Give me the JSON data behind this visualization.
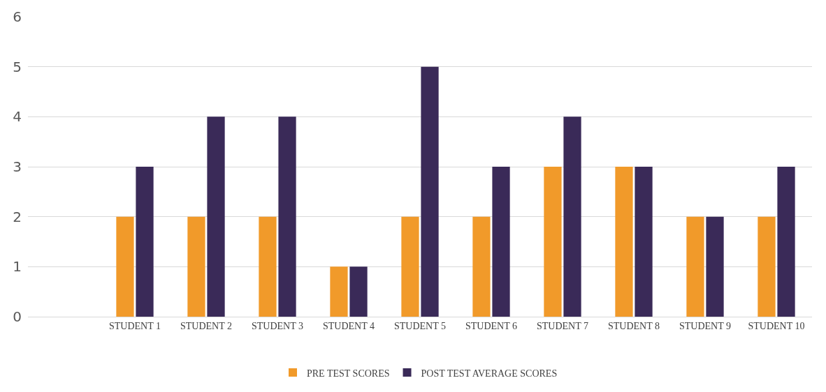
{
  "chart_data": {
    "type": "bar",
    "categories": [
      null,
      "STUDENT 1",
      "STUDENT 2",
      "STUDENT 3",
      "STUDENT 4",
      "STUDENT 5",
      "STUDENT 6",
      "STUDENT 7",
      "STUDENT 8",
      "STUDENT 9",
      "STUDENT 10"
    ],
    "series": [
      {
        "name": "PRE TEST SCORES",
        "color": "#f19a2a",
        "values": [
          null,
          2,
          2,
          2,
          1,
          2,
          2,
          3,
          3,
          2,
          2
        ]
      },
      {
        "name": "POST TEST AVERAGE SCORES",
        "color": "#3a2a58",
        "values": [
          null,
          3,
          4,
          4,
          1,
          5,
          3,
          4,
          3,
          2,
          3
        ]
      }
    ],
    "ylim": [
      0,
      6
    ],
    "yticks": [
      0,
      1,
      2,
      3,
      4,
      5,
      6
    ],
    "grid": "y",
    "legend": "bottom"
  }
}
